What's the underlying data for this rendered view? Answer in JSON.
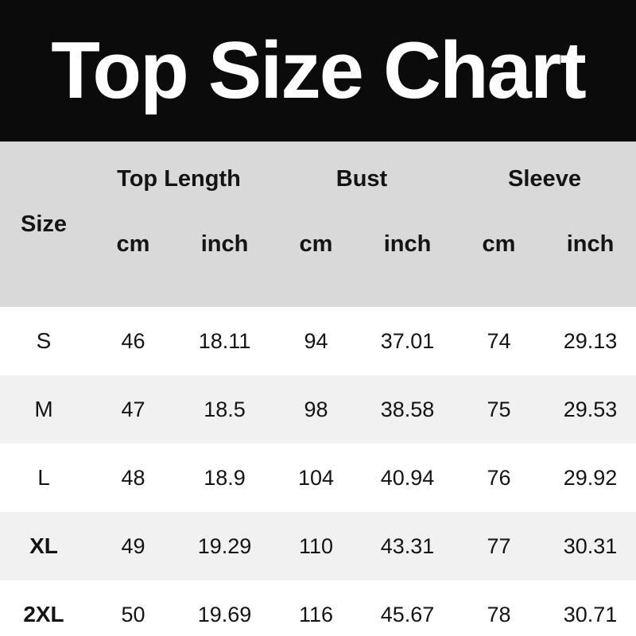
{
  "title": "Top Size Chart",
  "colors": {
    "banner_bg": "#0b0b0b",
    "banner_text": "#ffffff",
    "header_bg": "#d9d9d9",
    "row_bg": "#ffffff",
    "row_alt_bg": "#f1f1f1",
    "text": "#141414"
  },
  "table": {
    "size_header": "Size",
    "groups": [
      {
        "label": "Top Length",
        "units": [
          "cm",
          "inch"
        ]
      },
      {
        "label": "Bust",
        "units": [
          "cm",
          "inch"
        ]
      },
      {
        "label": "Sleeve",
        "units": [
          "cm",
          "inch"
        ]
      }
    ],
    "rows": [
      {
        "size": "S",
        "bold": false,
        "values": [
          "46",
          "18.11",
          "94",
          "37.01",
          "74",
          "29.13"
        ]
      },
      {
        "size": "M",
        "bold": false,
        "values": [
          "47",
          "18.5",
          "98",
          "38.58",
          "75",
          "29.53"
        ]
      },
      {
        "size": "L",
        "bold": false,
        "values": [
          "48",
          "18.9",
          "104",
          "40.94",
          "76",
          "29.92"
        ]
      },
      {
        "size": "XL",
        "bold": true,
        "values": [
          "49",
          "19.29",
          "110",
          "43.31",
          "77",
          "30.31"
        ]
      },
      {
        "size": "2XL",
        "bold": true,
        "values": [
          "50",
          "19.69",
          "116",
          "45.67",
          "78",
          "30.71"
        ]
      }
    ]
  },
  "chart_data": {
    "type": "table",
    "title": "Top Size Chart",
    "columns": [
      "Size",
      "Top Length cm",
      "Top Length inch",
      "Bust cm",
      "Bust inch",
      "Sleeve cm",
      "Sleeve inch"
    ],
    "rows": [
      [
        "S",
        46,
        18.11,
        94,
        37.01,
        74,
        29.13
      ],
      [
        "M",
        47,
        18.5,
        98,
        38.58,
        75,
        29.53
      ],
      [
        "L",
        48,
        18.9,
        104,
        40.94,
        76,
        29.92
      ],
      [
        "XL",
        49,
        19.29,
        110,
        43.31,
        77,
        30.31
      ],
      [
        "2XL",
        50,
        19.69,
        116,
        45.67,
        78,
        30.71
      ]
    ]
  }
}
